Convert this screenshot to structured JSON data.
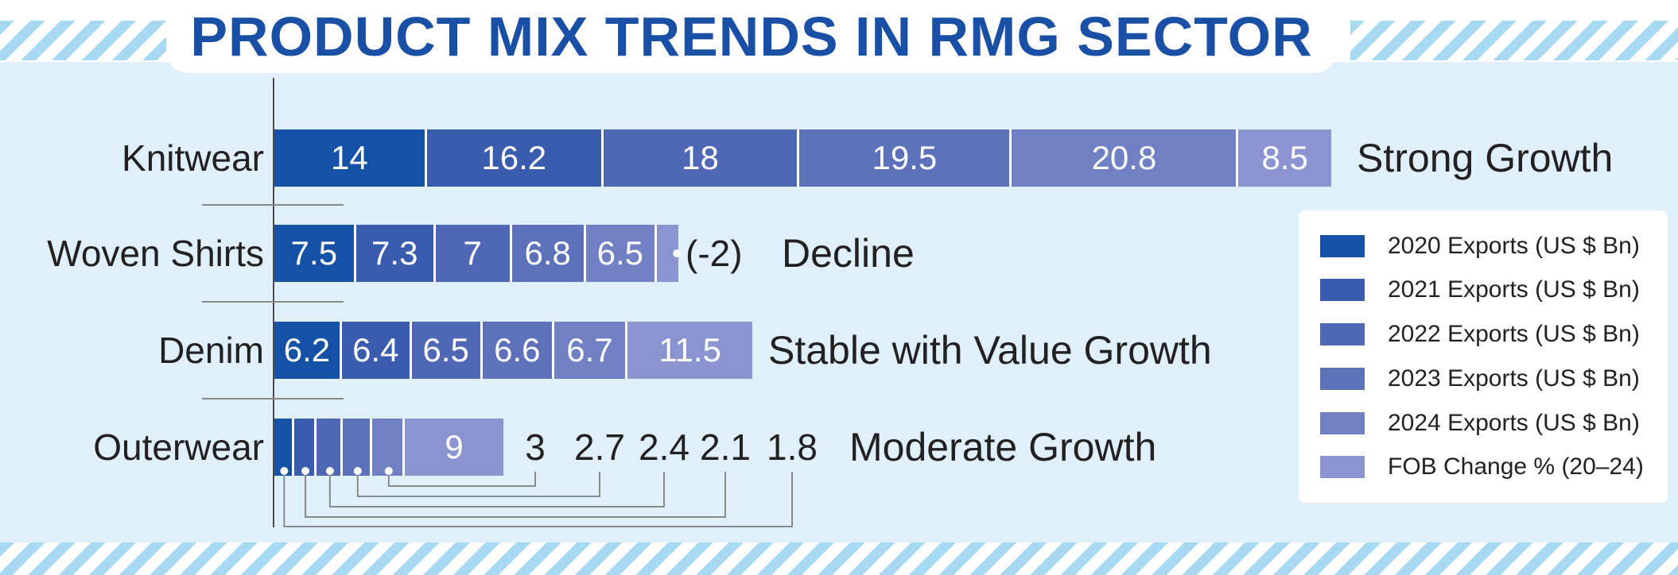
{
  "title": "PRODUCT MIX TRENDS IN RMG SECTOR",
  "colors": {
    "background": "#e0f0fb",
    "stripe": "#a8d9f3",
    "title_blue": "#1a4fa6",
    "text_dark": "#232021",
    "bar_series": [
      "#1551a5",
      "#3a5caf",
      "#5067b5",
      "#5d71bb",
      "#7180c3",
      "#8a94cf"
    ]
  },
  "legend": {
    "items": [
      {
        "label": "2020 Exports (US $ Bn)",
        "color": "#1551a5"
      },
      {
        "label": "2021 Exports (US $ Bn)",
        "color": "#3a5caf"
      },
      {
        "label": "2022 Exports (US $ Bn)",
        "color": "#5067b5"
      },
      {
        "label": "2023 Exports (US $ Bn)",
        "color": "#5d71bb"
      },
      {
        "label": "2024 Exports (US $ Bn)",
        "color": "#7180c3"
      },
      {
        "label": "FOB Change % (20–24)",
        "color": "#8a94cf"
      }
    ]
  },
  "chart_data": {
    "type": "bar",
    "orientation": "horizontal",
    "unit": "US $ Bn",
    "grid": false,
    "legend_position": "right",
    "series_labels": [
      "2020 Exports (US $ Bn)",
      "2021 Exports (US $ Bn)",
      "2022 Exports (US $ Bn)",
      "2023 Exports (US $ Bn)",
      "2024 Exports (US $ Bn)",
      "FOB Change % (20–24)"
    ],
    "categories": [
      "Knitwear",
      "Woven Shirts",
      "Denim",
      "Outerwear"
    ],
    "rows": [
      {
        "category": "Knitwear",
        "values": [
          14,
          16.2,
          18,
          19.5,
          20.8
        ],
        "fob_change": 8.5,
        "annotation": "Strong Growth",
        "inside_value_labels": true,
        "inside_fob_label": true
      },
      {
        "category": "Woven Shirts",
        "values": [
          7.5,
          7.3,
          7,
          6.8,
          6.5
        ],
        "fob_change": -2,
        "fob_label_outside": "(-2)",
        "annotation": "Decline",
        "inside_value_labels": true,
        "inside_fob_label": false
      },
      {
        "category": "Denim",
        "values": [
          6.2,
          6.4,
          6.5,
          6.6,
          6.7
        ],
        "fob_change": 11.5,
        "annotation": "Stable with Value Growth",
        "inside_value_labels": true,
        "inside_fob_label": true
      },
      {
        "category": "Outerwear",
        "values": [
          1.8,
          2.1,
          2.4,
          2.7,
          3
        ],
        "fob_change": 9,
        "annotation": "Moderate Growth",
        "outside_value_labels": [
          "3",
          "2.7",
          "2.4",
          "2.1",
          "1.8"
        ],
        "inside_value_labels": false,
        "inside_fob_label": true
      }
    ]
  }
}
